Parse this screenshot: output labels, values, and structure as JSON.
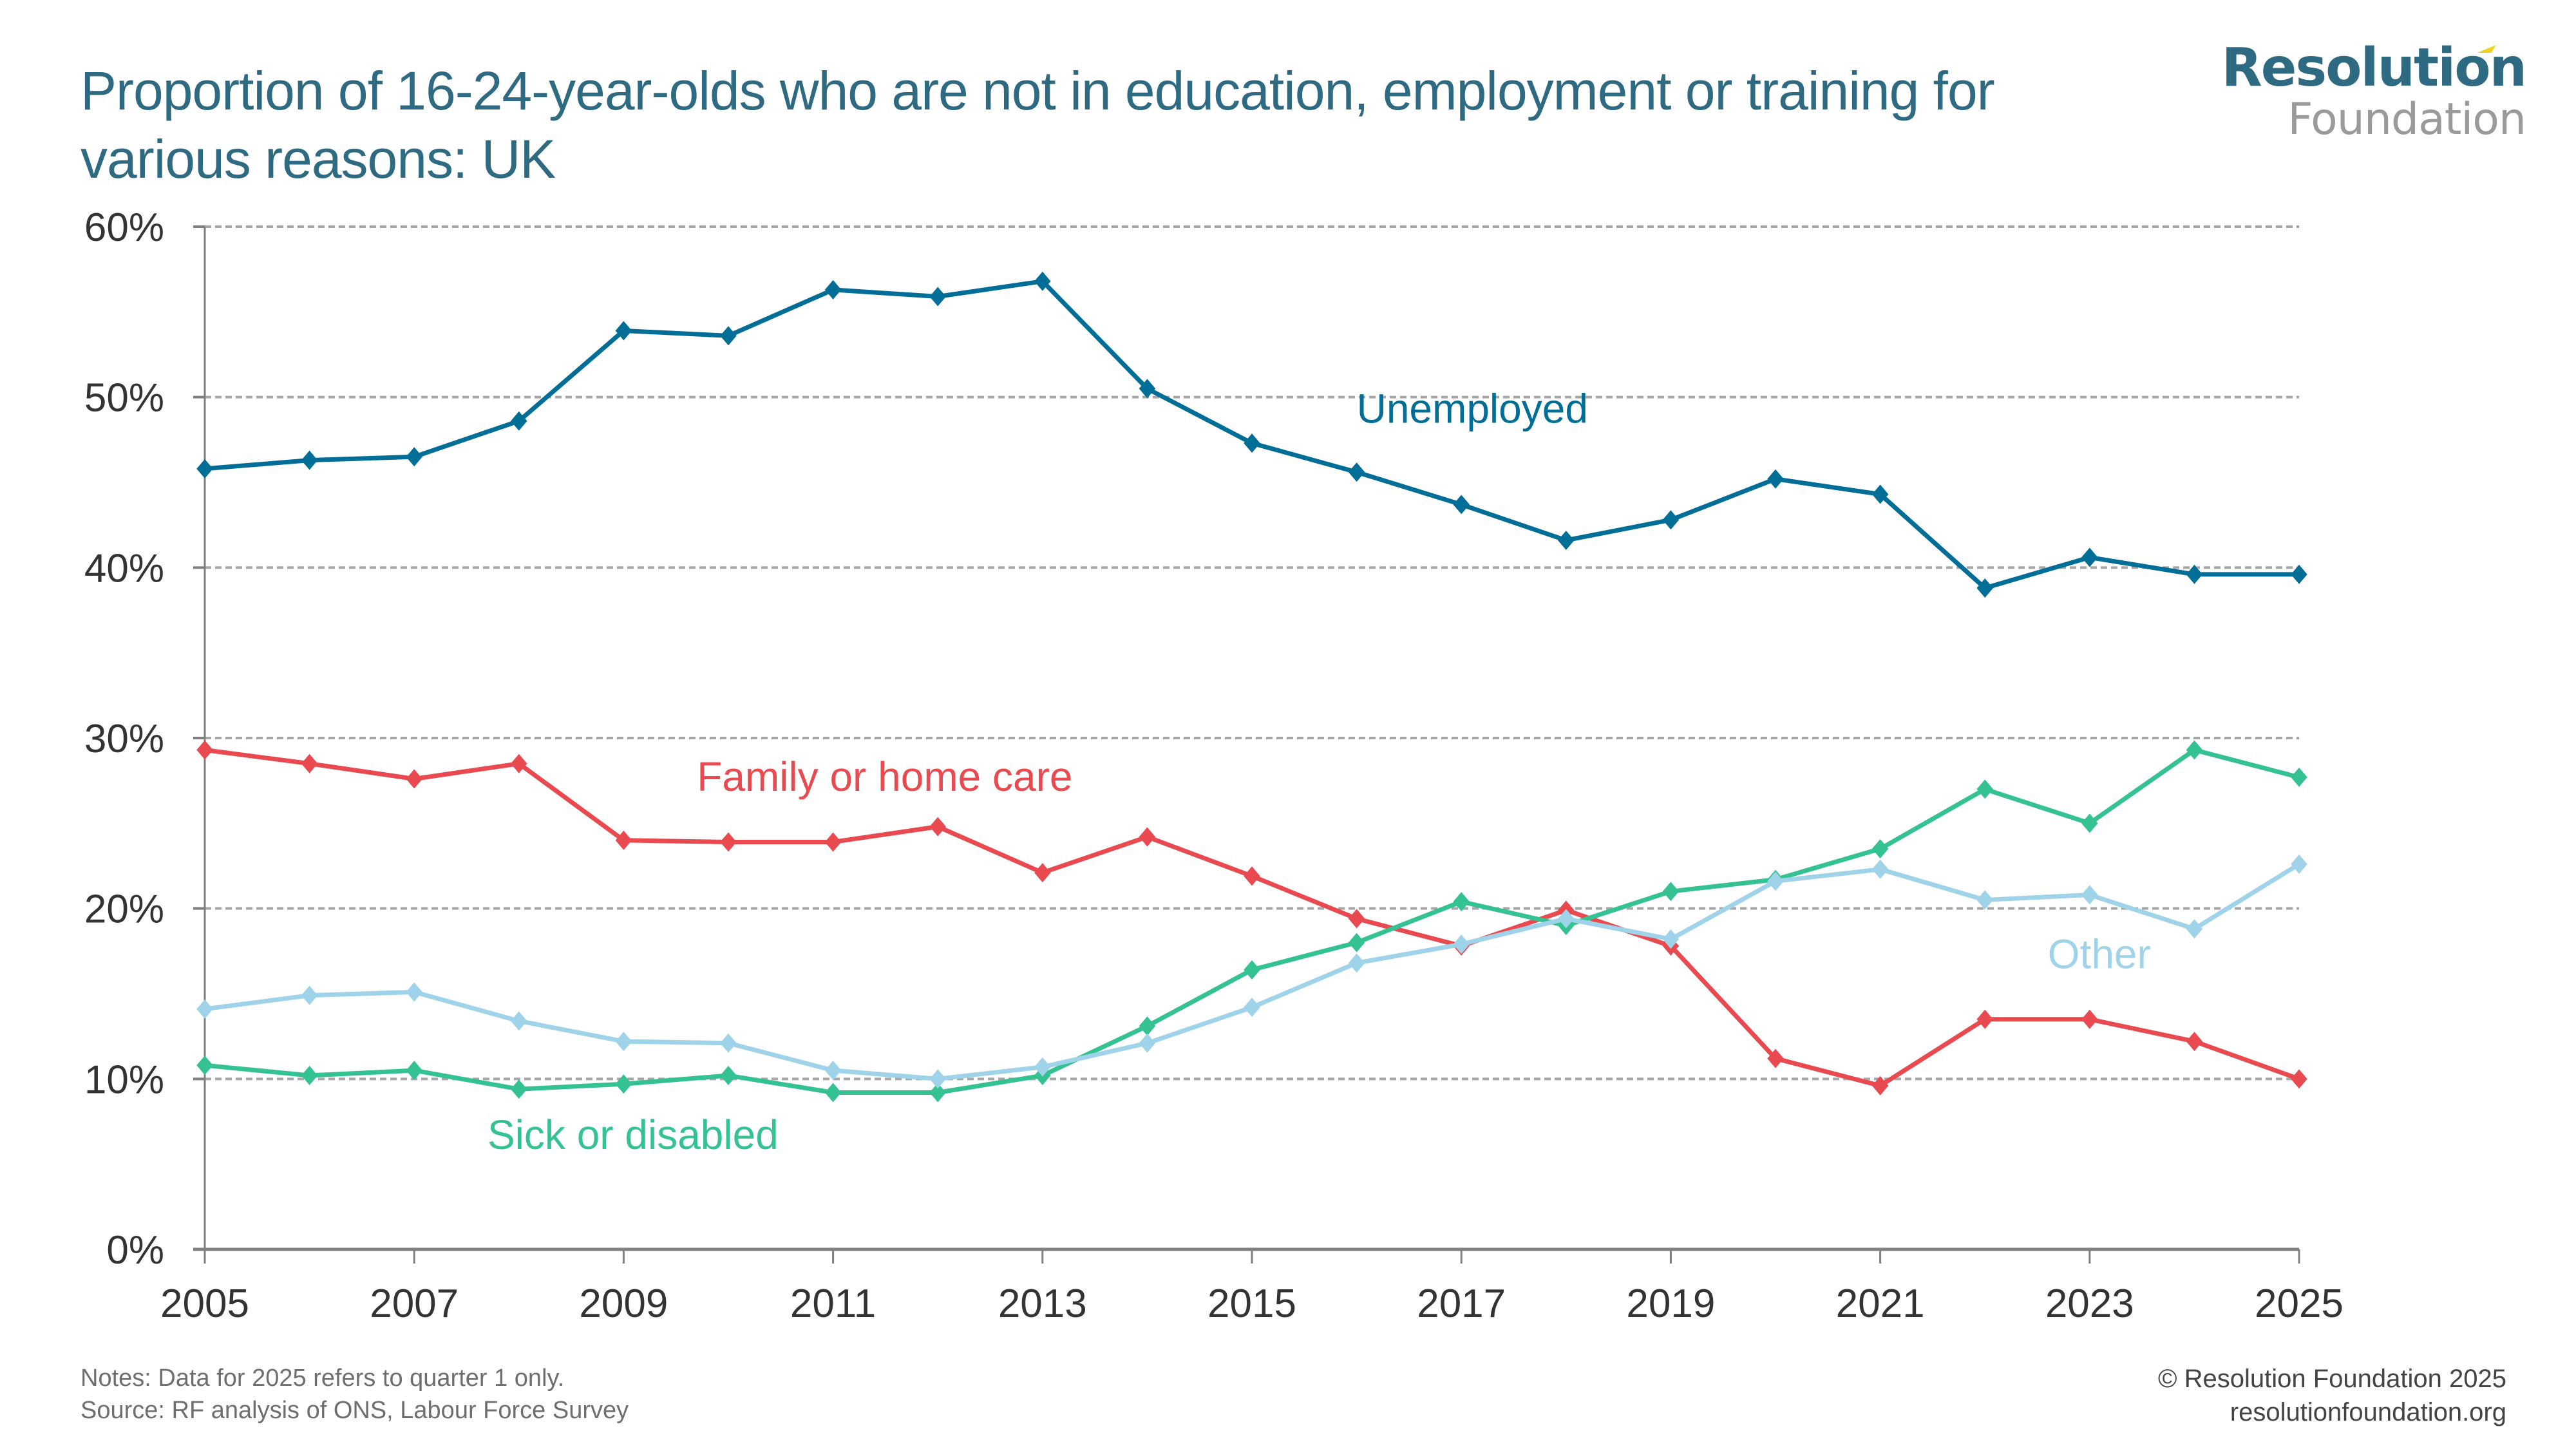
{
  "header": {
    "title": "Proportion of 16-24-year-olds who are not in education, employment or training for various reasons: UK",
    "logo_line1": "Resolution",
    "logo_line2": "Foundation"
  },
  "footer": {
    "notes": "Notes: Data for 2025 refers to quarter 1 only.",
    "source": "Source: RF analysis of ONS, Labour Force Survey",
    "copyright": "© Resolution Foundation 2025",
    "website": "resolutionfoundation.org"
  },
  "colors": {
    "title": "#2E6B82",
    "unemployed": "#006E96",
    "family": "#E84A50",
    "sick": "#34C292",
    "other": "#9ED3EA",
    "grid": "#A6A6A6",
    "axis": "#808080",
    "tick_text": "#333333"
  },
  "chart_data": {
    "type": "line",
    "title": "Proportion of 16-24-year-olds who are not in education, employment or training for various reasons: UK",
    "xlabel": "",
    "ylabel": "",
    "x": [
      2005,
      2006,
      2007,
      2008,
      2009,
      2010,
      2011,
      2012,
      2013,
      2014,
      2015,
      2016,
      2017,
      2018,
      2019,
      2020,
      2021,
      2022,
      2023,
      2024,
      2025
    ],
    "xlim": [
      2005,
      2025
    ],
    "ylim": [
      0,
      60
    ],
    "x_ticks": [
      "2005",
      "2007",
      "2009",
      "2011",
      "2013",
      "2015",
      "2017",
      "2019",
      "2021",
      "2023",
      "2025"
    ],
    "y_ticks": [
      "0%",
      "10%",
      "20%",
      "30%",
      "40%",
      "50%",
      "60%"
    ],
    "y_tick_values": [
      0,
      10,
      20,
      30,
      40,
      50,
      60
    ],
    "grid": true,
    "legend": "inline-labels",
    "series": [
      {
        "name": "Unemployed",
        "key": "unemployed",
        "values": [
          45.8,
          46.3,
          46.5,
          48.6,
          53.9,
          53.6,
          56.3,
          55.9,
          56.8,
          50.5,
          47.3,
          45.6,
          43.7,
          41.6,
          42.8,
          45.2,
          44.3,
          38.8,
          40.6,
          39.6,
          39.6
        ],
        "label": "Unemployed",
        "label_at": [
          2016,
          48.5
        ]
      },
      {
        "name": "Family or home care",
        "key": "family",
        "values": [
          29.3,
          28.5,
          27.6,
          28.5,
          24.0,
          23.9,
          23.9,
          24.8,
          22.1,
          24.2,
          21.9,
          19.4,
          17.8,
          19.9,
          17.8,
          11.2,
          9.6,
          13.5,
          13.5,
          12.2,
          10.0
        ],
        "label": "Family or home care",
        "label_at": [
          2009.7,
          26.9
        ]
      },
      {
        "name": "Sick or disabled",
        "key": "sick",
        "values": [
          10.8,
          10.2,
          10.5,
          9.4,
          9.7,
          10.2,
          9.2,
          9.2,
          10.2,
          13.1,
          16.4,
          18.0,
          20.4,
          19.0,
          21.0,
          21.7,
          23.5,
          27.0,
          25.0,
          29.3,
          27.7
        ],
        "label": "Sick or disabled",
        "label_at": [
          2007.7,
          5.9
        ]
      },
      {
        "name": "Other",
        "key": "other",
        "values": [
          14.1,
          14.9,
          15.1,
          13.4,
          12.2,
          12.1,
          10.5,
          10.0,
          10.7,
          12.1,
          14.2,
          16.8,
          17.9,
          19.4,
          18.2,
          21.6,
          22.3,
          20.5,
          20.8,
          18.8,
          22.6
        ],
        "label": "Other",
        "label_at": [
          2022.6,
          16.5
        ]
      }
    ]
  }
}
